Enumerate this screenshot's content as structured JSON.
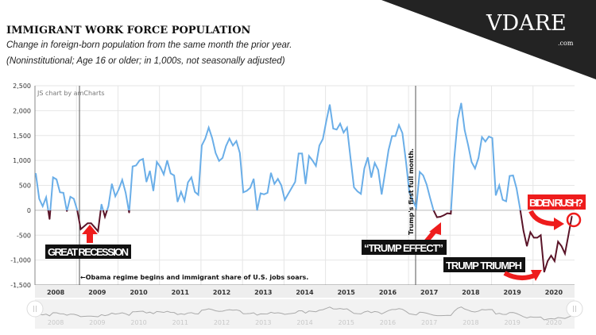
{
  "header": {
    "title": "IMMIGRANT WORK FORCE POPULATION",
    "subtitle": "Change in foreign-born population from the same month the prior year.",
    "note": "(Noninstitutional; Age 16 or older; in 1,000s, not seasonally adjusted)"
  },
  "logo": {
    "text": "VDARE",
    "suffix": ".com"
  },
  "credit": "JS chart by amCharts",
  "colors": {
    "positive": "#6aaee8",
    "negative": "#5a1428",
    "annotation": "#ee1c1c",
    "banner": "#232323"
  },
  "annotations": {
    "great_recession": "GREAT RECESSION",
    "obama": "←Obama regime begins and immigrant share of U.S. jobs soars.",
    "trump_line": "Trump's first full month.",
    "trump_effect": "“TRUMP EFFECT”",
    "trump_triumph": "TRUMP TRIUMPH",
    "biden_rush": "BIDEN RUSH?"
  },
  "chart_data": {
    "type": "line",
    "title": "IMMIGRANT WORK FORCE POPULATION",
    "xlabel": "",
    "ylabel": "",
    "start": "2008-01",
    "frequency": "monthly",
    "ylim": [
      -1500,
      2500
    ],
    "yticks": [
      2500,
      2000,
      1500,
      1000,
      500,
      0,
      -500,
      -1000,
      -1500
    ],
    "ytick_labels": [
      "2,500",
      "2,000",
      "1,500",
      "1,000",
      "500",
      "0",
      "-500",
      "-1,000",
      "-1,500"
    ],
    "years": [
      "2008",
      "2009",
      "2010",
      "2011",
      "2012",
      "2013",
      "2014",
      "2015",
      "2016",
      "2017",
      "2018",
      "2019",
      "2020"
    ],
    "values": [
      740,
      230,
      80,
      260,
      -180,
      660,
      620,
      360,
      350,
      -20,
      270,
      230,
      0,
      -380,
      -320,
      -260,
      -260,
      -340,
      -420,
      120,
      -130,
      80,
      530,
      280,
      420,
      610,
      350,
      -50,
      880,
      900,
      1000,
      1030,
      570,
      790,
      390,
      970,
      870,
      720,
      1000,
      740,
      700,
      170,
      370,
      190,
      560,
      660,
      370,
      310,
      1300,
      1440,
      1660,
      1450,
      1150,
      990,
      1050,
      1290,
      1440,
      1300,
      1390,
      1150,
      360,
      390,
      450,
      630,
      0,
      340,
      320,
      350,
      750,
      530,
      630,
      500,
      210,
      330,
      450,
      570,
      1140,
      1140,
      530,
      1090,
      1000,
      890,
      1300,
      1430,
      1790,
      2120,
      1640,
      1620,
      1740,
      1560,
      1660,
      1050,
      460,
      380,
      330,
      840,
      1060,
      660,
      950,
      810,
      320,
      760,
      1210,
      1490,
      1490,
      1710,
      1550,
      1000,
      360,
      200,
      50,
      770,
      700,
      520,
      250,
      0,
      -140,
      -130,
      -100,
      -60,
      -70,
      1050,
      1820,
      2150,
      1610,
      1310,
      970,
      840,
      1050,
      1470,
      1380,
      1480,
      1450,
      300,
      500,
      210,
      180,
      690,
      700,
      440,
      40,
      -410,
      -720,
      -440,
      -550,
      -550,
      -500,
      -1240,
      -1020,
      -910,
      -1020,
      -630,
      -720,
      -870,
      -500,
      -120
    ],
    "grid": true,
    "legend": "none"
  }
}
